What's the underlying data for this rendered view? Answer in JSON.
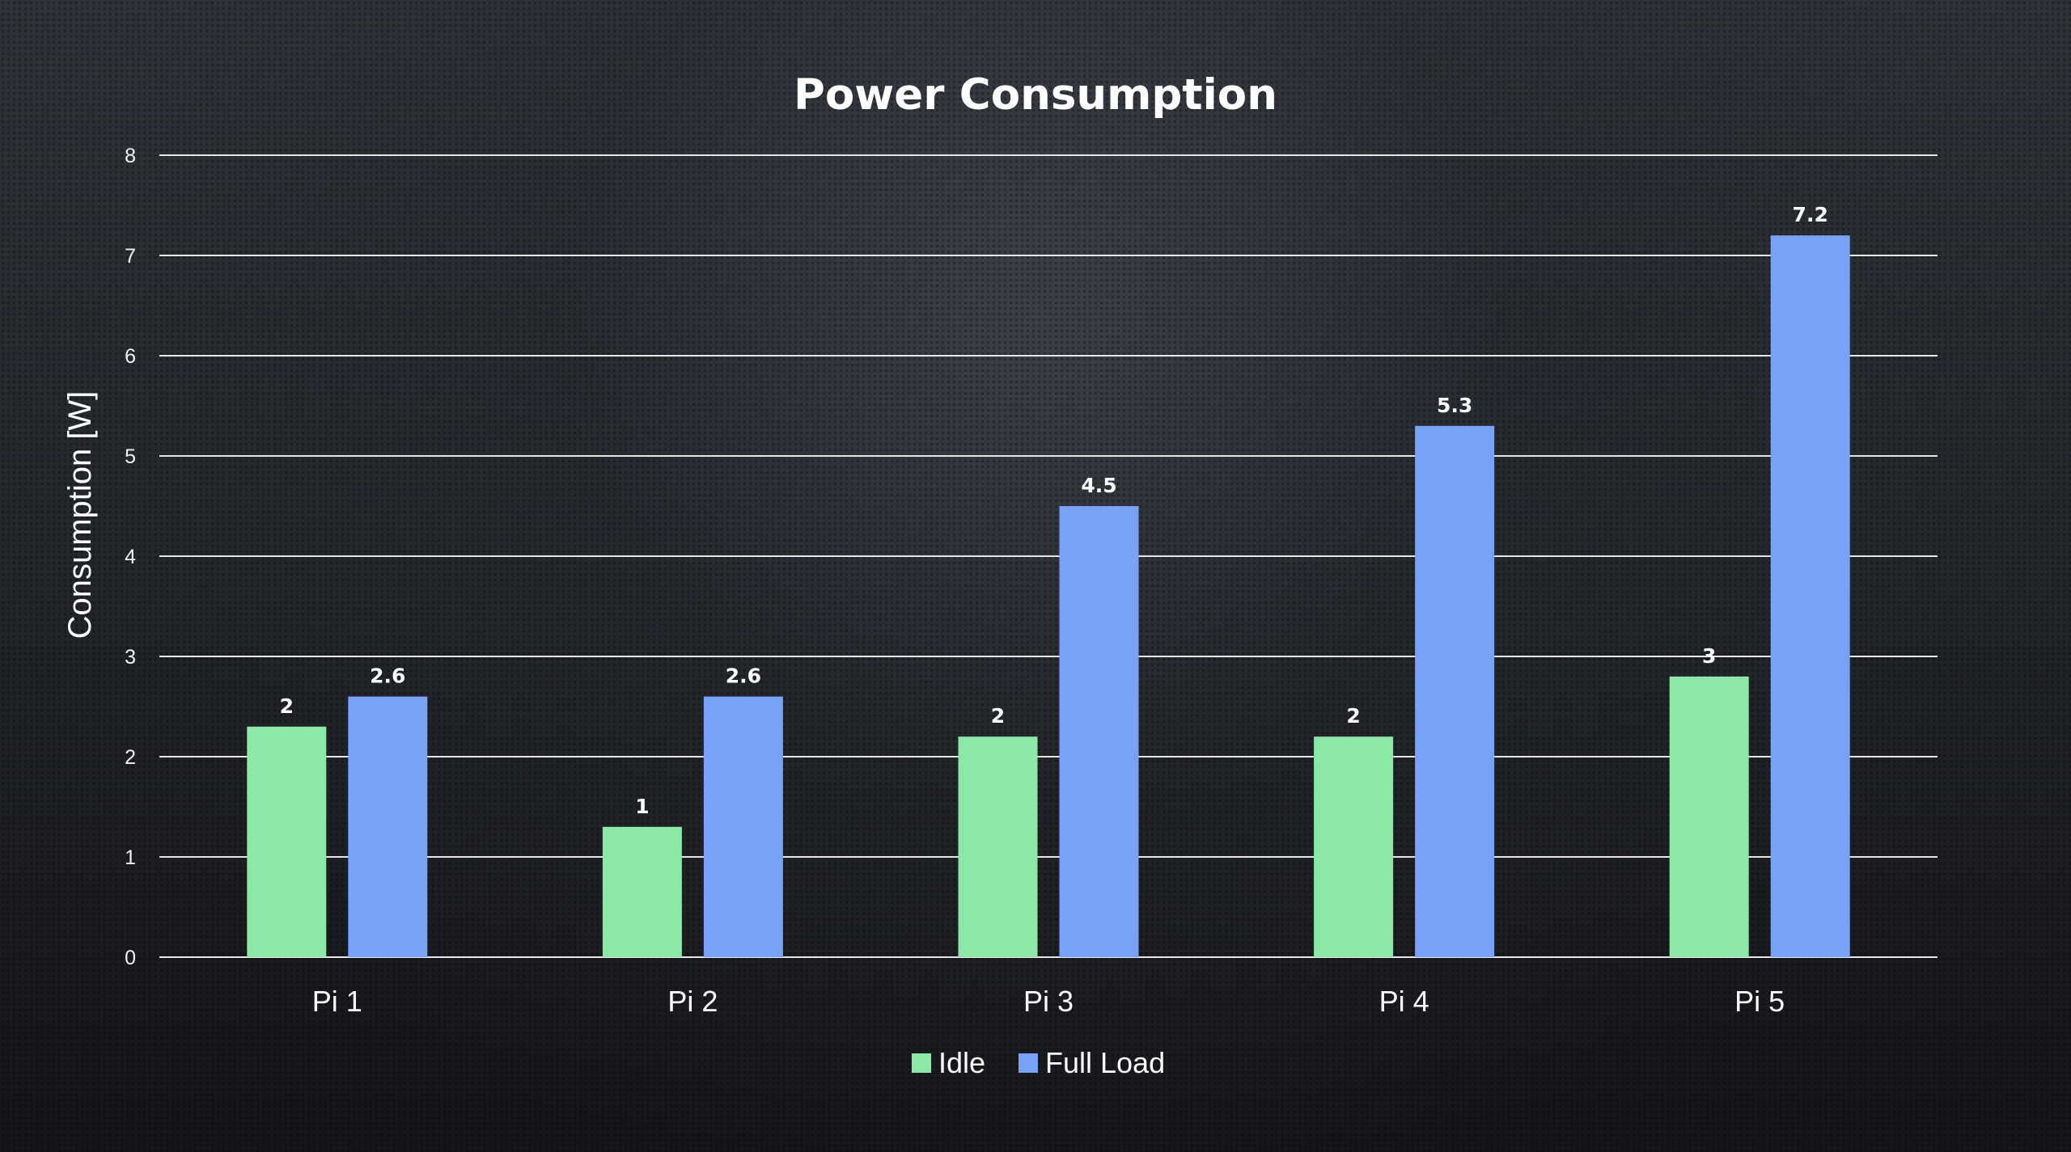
{
  "chart_data": {
    "type": "bar",
    "title": "Power Consumption",
    "xlabel": "",
    "ylabel": "Consumption [W]",
    "ylim": [
      0,
      8
    ],
    "yticks": [
      "0",
      "1",
      "2",
      "3",
      "4",
      "5",
      "6",
      "7",
      "8"
    ],
    "categories": [
      "Pi 1",
      "Pi 2",
      "Pi 3",
      "Pi 4",
      "Pi 5"
    ],
    "series": [
      {
        "name": "Idle",
        "color": "#8ce8a6",
        "values": [
          2.3,
          1.3,
          2.2,
          2.2,
          2.8
        ],
        "labels": [
          "2",
          "1",
          "2",
          "2",
          "3"
        ]
      },
      {
        "name": "Full Load",
        "color": "#77a2f6",
        "values": [
          2.6,
          2.6,
          4.5,
          5.3,
          7.2
        ],
        "labels": [
          "2.6",
          "2.6",
          "4.5",
          "5.3",
          "7.2"
        ]
      }
    ],
    "grid": true,
    "legend_position": "bottom"
  }
}
